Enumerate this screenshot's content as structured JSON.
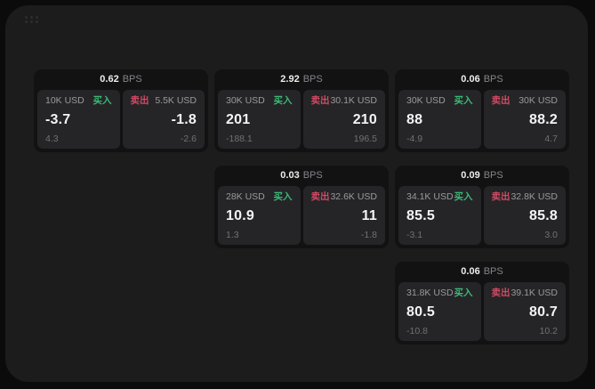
{
  "labels": {
    "bps": "BPS",
    "buy": "买入",
    "sell": "卖出"
  },
  "icons": {
    "drag_handle": "dots-grid"
  },
  "colors": {
    "background": "#0b0b0b",
    "panel": "#1c1c1d",
    "card": "#121213",
    "side_panel": "#252527",
    "buy_green": "#3cb878",
    "sell_red": "#d24a63"
  },
  "cards": [
    {
      "bps": "0.62",
      "buy": {
        "size": "10K USD",
        "price": "-3.7",
        "delta": "4.3"
      },
      "sell": {
        "size": "5.5K USD",
        "price": "-1.8",
        "delta": "-2.6"
      }
    },
    {
      "bps": "2.92",
      "buy": {
        "size": "30K USD",
        "price": "201",
        "delta": "-188.1"
      },
      "sell": {
        "size": "30.1K USD",
        "price": "210",
        "delta": "196.5"
      }
    },
    {
      "bps": "0.06",
      "buy": {
        "size": "30K USD",
        "price": "88",
        "delta": "-4.9"
      },
      "sell": {
        "size": "30K USD",
        "price": "88.2",
        "delta": "4.7"
      }
    },
    {
      "bps": "0.03",
      "buy": {
        "size": "28K USD",
        "price": "10.9",
        "delta": "1.3"
      },
      "sell": {
        "size": "32.6K USD",
        "price": "11",
        "delta": "-1.8"
      }
    },
    {
      "bps": "0.09",
      "buy": {
        "size": "34.1K USD",
        "price": "85.5",
        "delta": "-3.1"
      },
      "sell": {
        "size": "32.8K USD",
        "price": "85.8",
        "delta": "3.0"
      }
    },
    {
      "bps": "0.06",
      "buy": {
        "size": "31.8K USD",
        "price": "80.5",
        "delta": "-10.8"
      },
      "sell": {
        "size": "39.1K USD",
        "price": "80.7",
        "delta": "10.2"
      }
    }
  ]
}
